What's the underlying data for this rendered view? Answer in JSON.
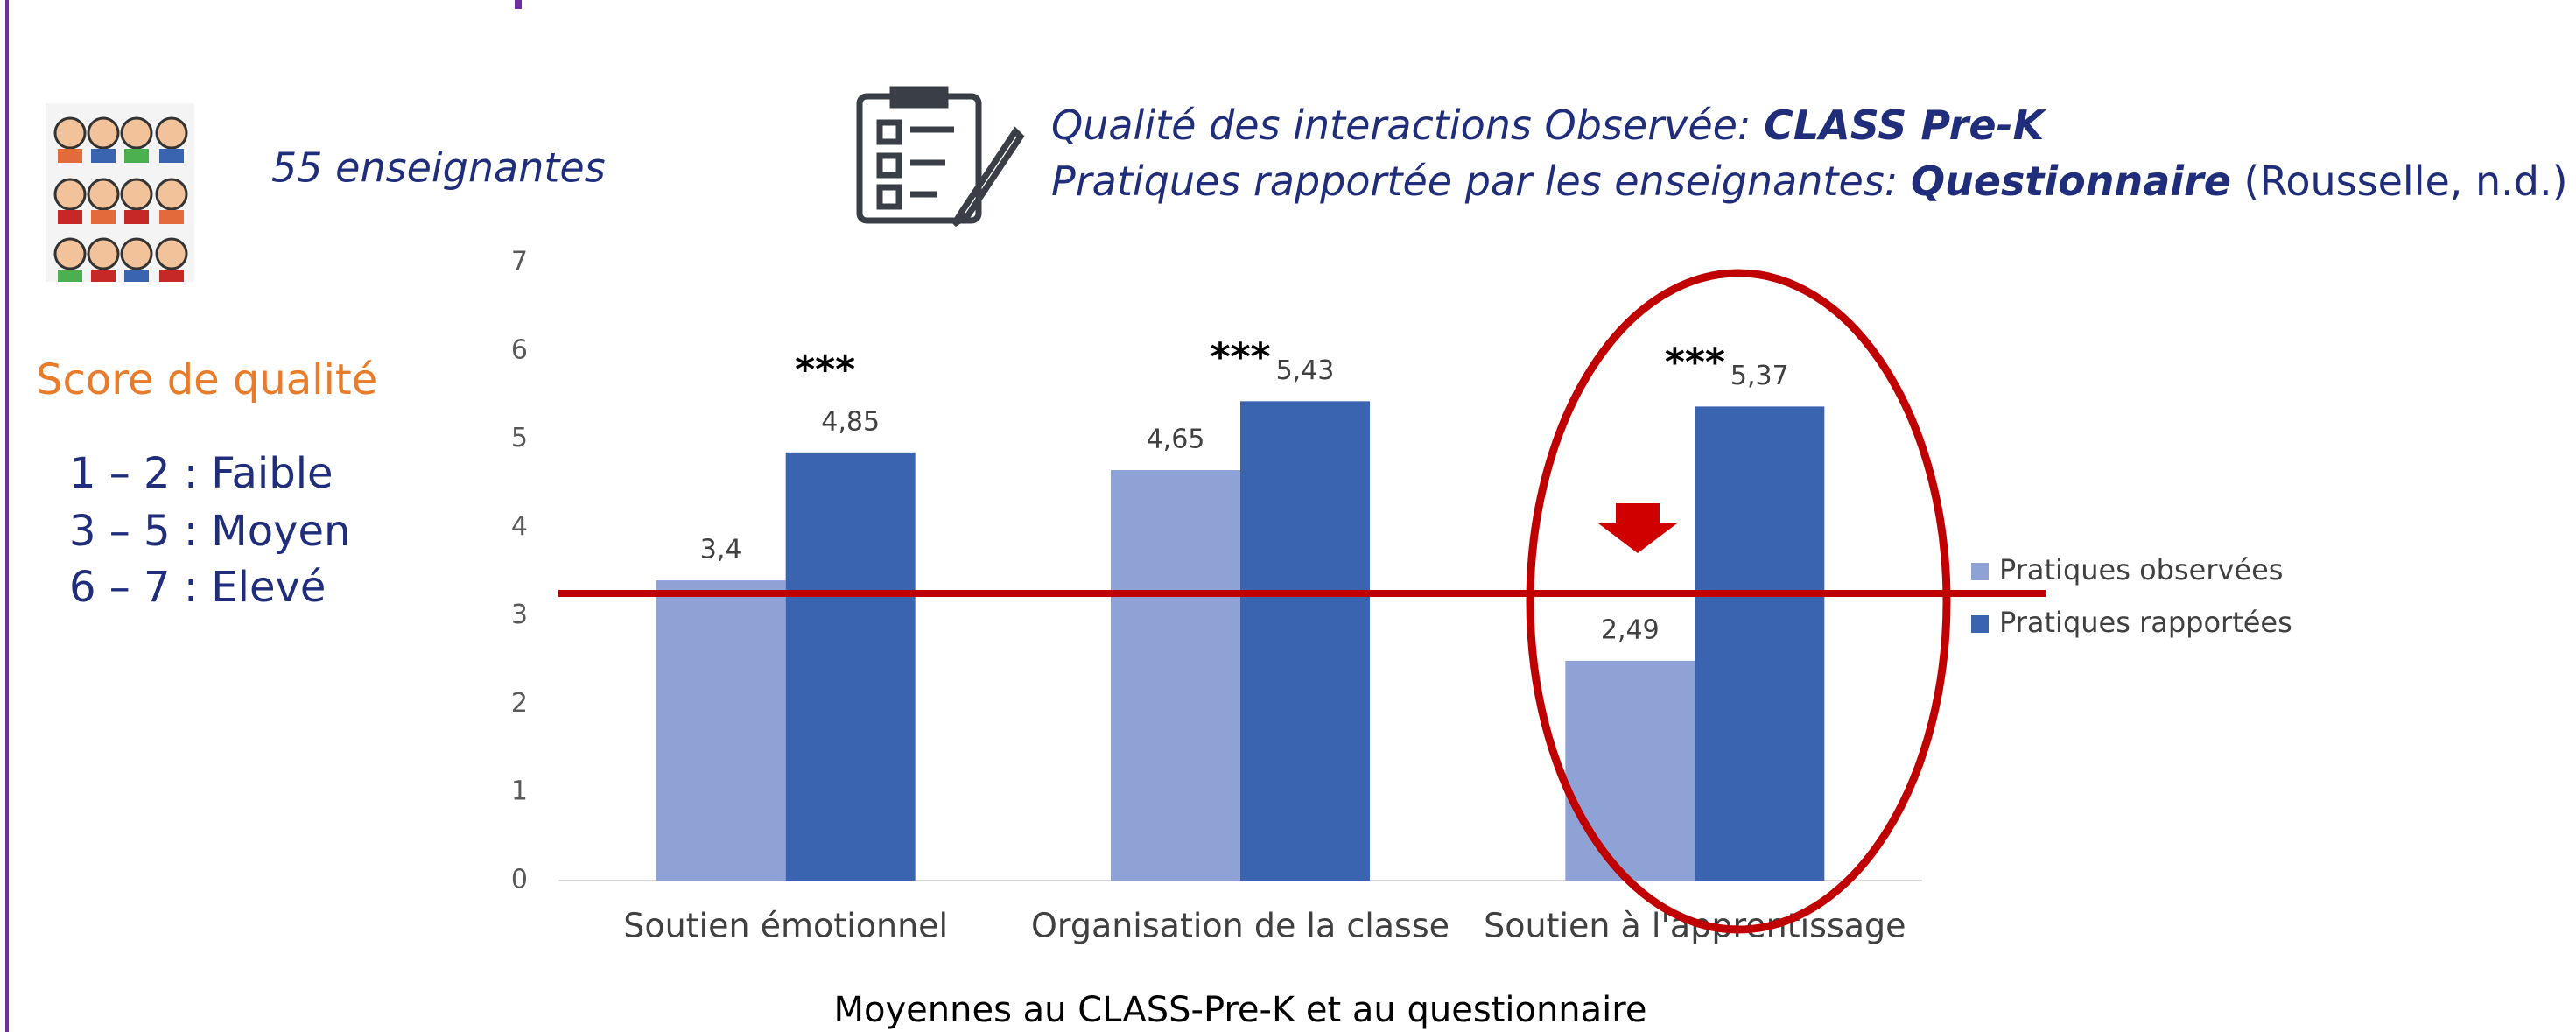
{
  "header": {
    "teachers": "55 enseignantes",
    "line1": [
      "Qualité des interactions Observée: ",
      "CLASS Pre-K"
    ],
    "line2": [
      "Pratiques rapportée par les enseignantes: ",
      "Questionnaire",
      " (Rousselle, n.d.)"
    ]
  },
  "scale": {
    "title": "Score de qualité",
    "levels": [
      "1 – 2 : Faible",
      "3 – 5 : Moyen",
      "6 – 7 : Elevé"
    ]
  },
  "chart_data": {
    "type": "bar",
    "x_label": "Moyennes au CLASS-Pre-K et au questionnaire",
    "categories": [
      "Soutien émotionnel",
      "Organisation de la classe",
      "Soutien à l'apprentissage"
    ],
    "series": [
      {
        "name": "Pratiques observées",
        "color": "#8fa2d6",
        "values": [
          3.4,
          4.65,
          2.49
        ],
        "value_labels": [
          "3,4",
          "4,65",
          "2,49"
        ]
      },
      {
        "name": "Pratiques rapportées",
        "color": "#3a63b0",
        "values": [
          4.85,
          5.43,
          5.37
        ],
        "value_labels": [
          "4,85",
          "5,43",
          "5,37"
        ]
      }
    ],
    "annotations": [
      "***",
      "***",
      "***"
    ],
    "ylim": [
      0,
      7
    ],
    "yticks": [
      0,
      1,
      2,
      3,
      4,
      5,
      6,
      7
    ],
    "grid": false,
    "legend": "right"
  }
}
